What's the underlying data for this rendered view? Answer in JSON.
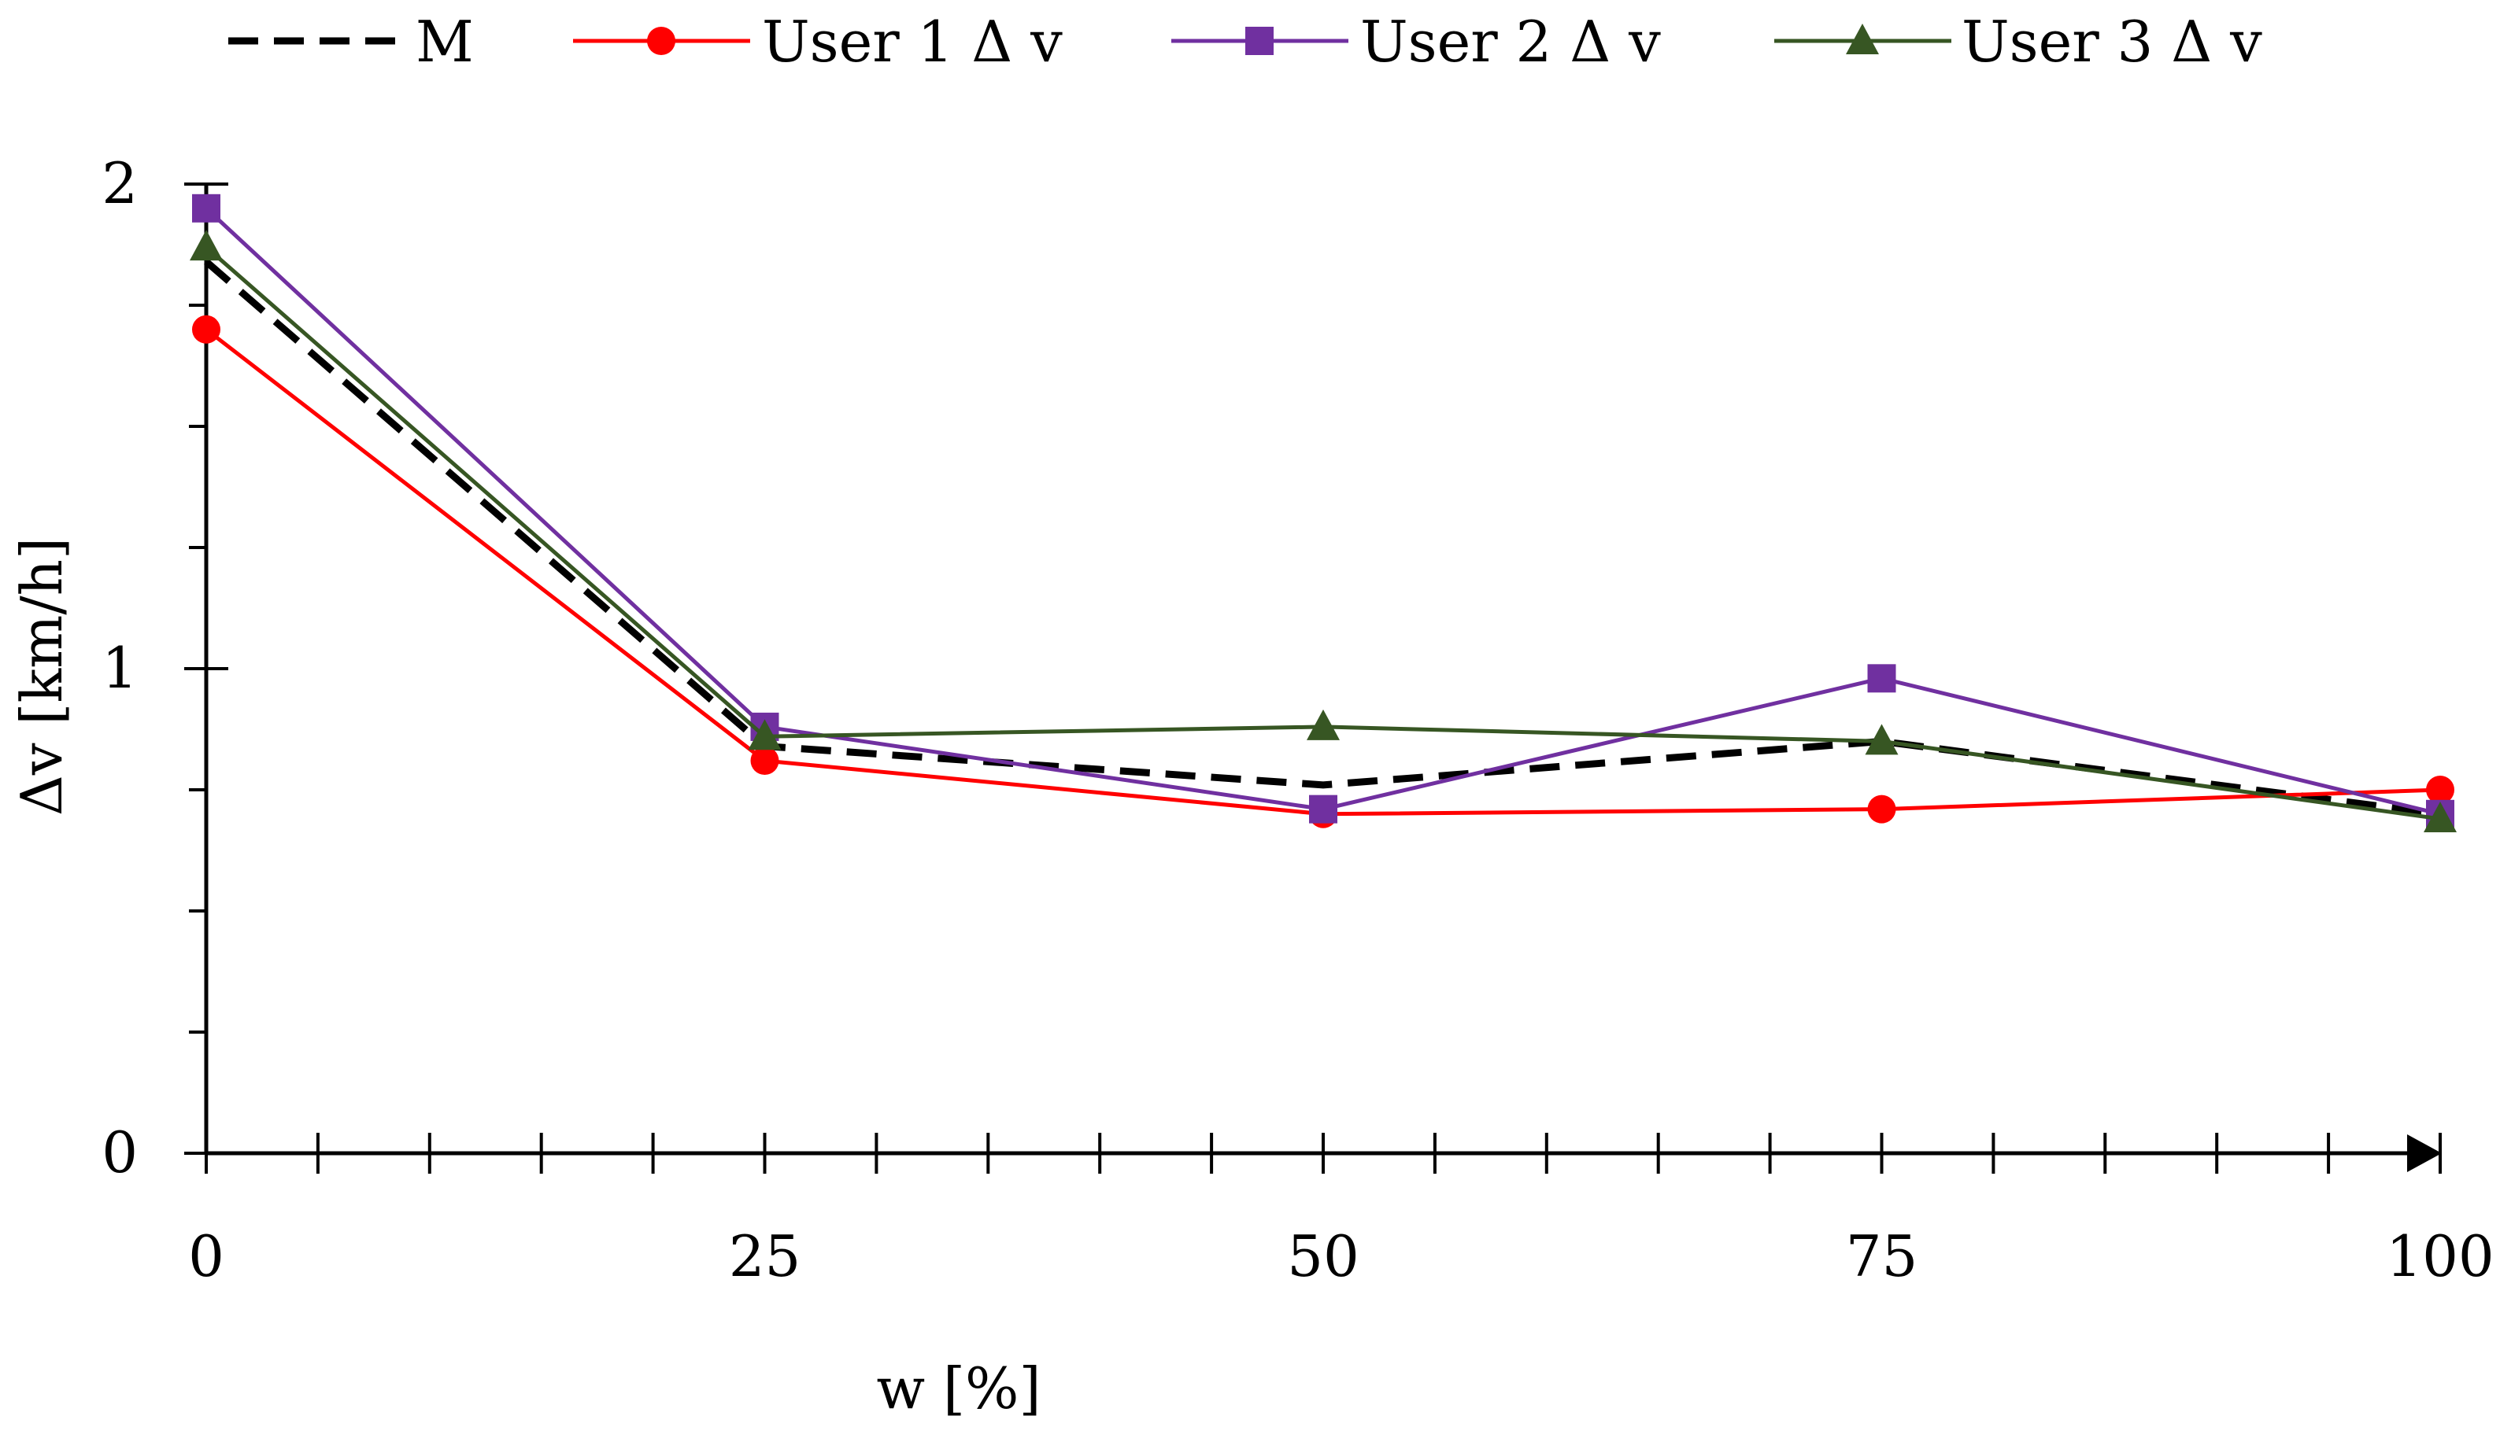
{
  "chart_data": {
    "type": "line",
    "title": "",
    "xlabel": "w [%]",
    "ylabel": "Δv [km/h]",
    "x": [
      0,
      25,
      50,
      75,
      100
    ],
    "xlim": [
      0,
      100
    ],
    "ylim": [
      0,
      2
    ],
    "x_ticks": [
      "0",
      "25",
      "50",
      "75",
      "100"
    ],
    "y_ticks": [
      "0",
      "1",
      "2"
    ],
    "grid": false,
    "legend_position": "top",
    "series": [
      {
        "name": "M",
        "color": "#000000",
        "style": "dashed",
        "marker": "none",
        "values": [
          1.84,
          0.84,
          0.76,
          0.85,
          0.7
        ]
      },
      {
        "name": "User 1 Δ v",
        "color": "#ff0000",
        "style": "solid",
        "marker": "circle",
        "values": [
          1.7,
          0.81,
          0.7,
          0.71,
          0.75
        ]
      },
      {
        "name": "User 2 Δ v",
        "color": "#7030a0",
        "style": "solid",
        "marker": "square",
        "values": [
          1.95,
          0.88,
          0.71,
          0.98,
          0.7
        ]
      },
      {
        "name": "User 3 Δ v",
        "color": "#375623",
        "style": "solid",
        "marker": "triangle",
        "values": [
          1.87,
          0.86,
          0.88,
          0.85,
          0.69
        ]
      }
    ]
  }
}
